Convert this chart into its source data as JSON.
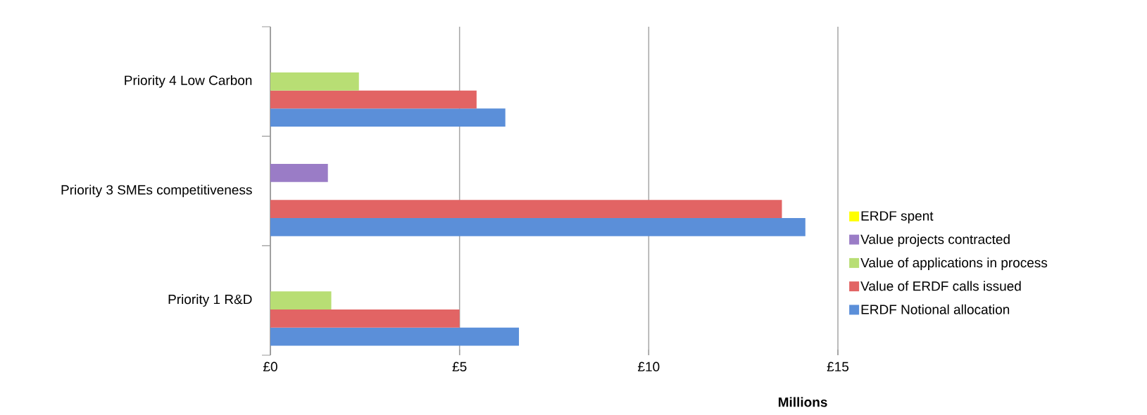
{
  "chart_data": {
    "type": "bar",
    "orientation": "horizontal",
    "xlabel": "Millions",
    "categories": [
      "Priority 4 Low Carbon",
      "Priority 3 SMEs competitiveness",
      "Priority 1 R&D"
    ],
    "series": [
      {
        "name": "ERDF Notional allocation",
        "color": "#5b8fd9",
        "values": [
          6.21,
          14.14,
          6.57
        ]
      },
      {
        "name": "Value of ERDF calls issued",
        "color": "#e26464",
        "values": [
          5.45,
          13.52,
          5.0
        ]
      },
      {
        "name": "Value of applications in process",
        "color": "#b8de74",
        "values": [
          2.34,
          null,
          1.61
        ]
      },
      {
        "name": "Value projects contracted",
        "color": "#9a7cc6",
        "values": [
          null,
          1.52,
          null
        ]
      },
      {
        "name": "ERDF spent",
        "color": "#ffff00",
        "values": [
          null,
          null,
          null
        ]
      }
    ],
    "xlim": [
      0,
      15
    ],
    "xticks": [
      {
        "value": 0,
        "label": "£0"
      },
      {
        "value": 5,
        "label": "£5"
      },
      {
        "value": 10,
        "label": "£10"
      },
      {
        "value": 15,
        "label": "£15"
      }
    ],
    "grid": "x",
    "legend": "right"
  }
}
